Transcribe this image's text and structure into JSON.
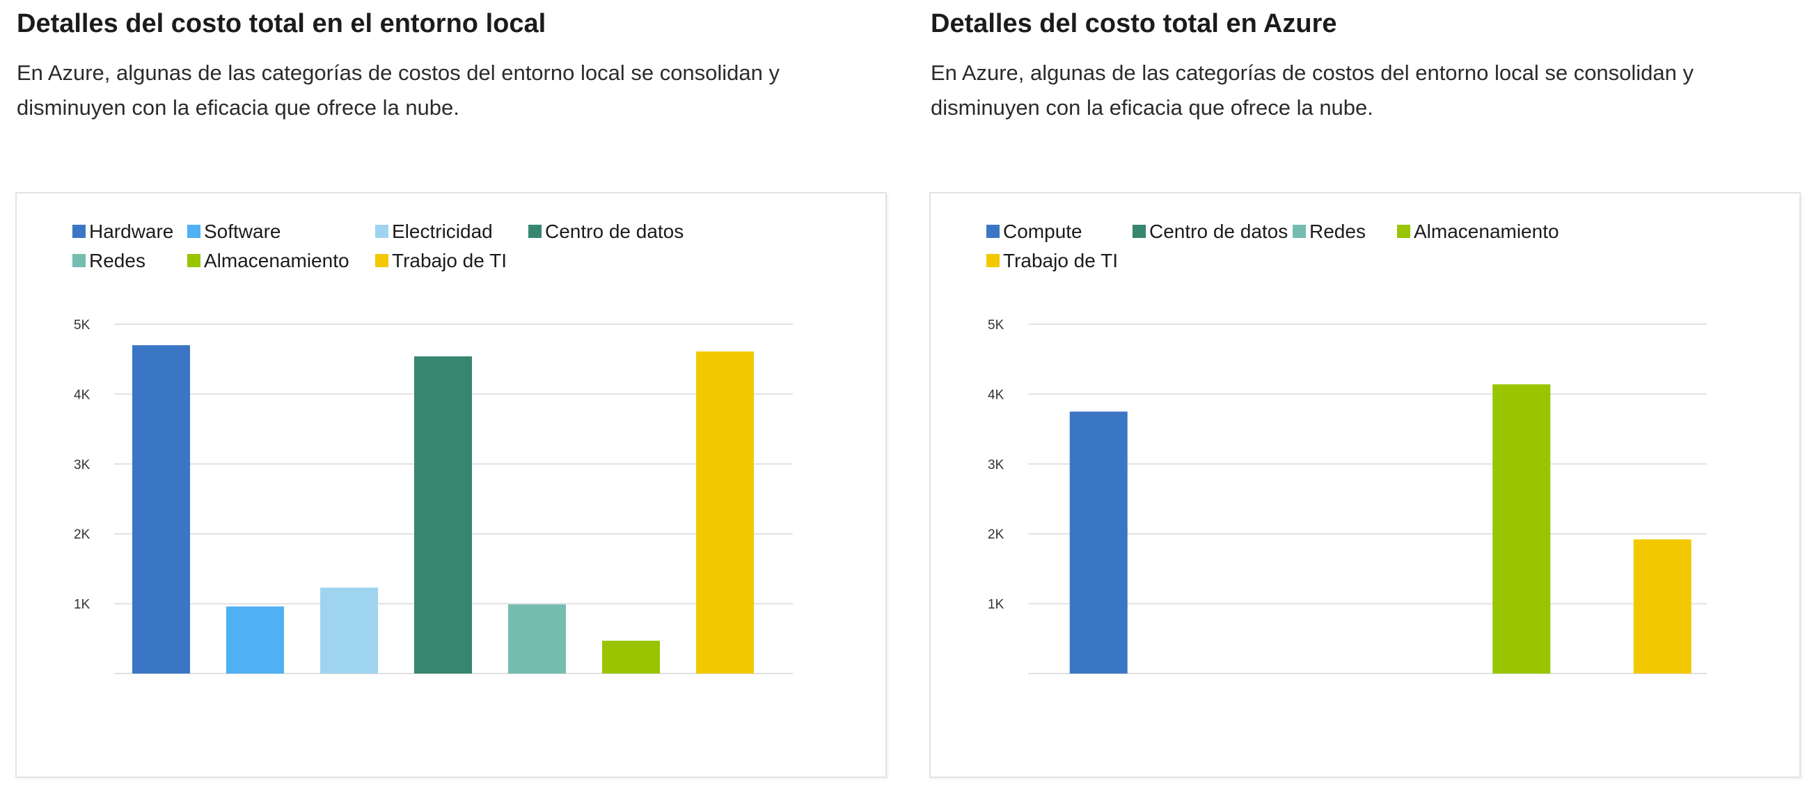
{
  "chart_data": [
    {
      "type": "bar",
      "title": "Detalles del costo total en el entorno local",
      "subtitle": "En Azure, algunas de las categorías de costos del entorno local se consolidan y disminuyen con la eficacia que ofrece la nube.",
      "categories": [
        "Hardware",
        "Software",
        "Electricidad",
        "Centro de datos",
        "Redes",
        "Almacenamiento",
        "Trabajo de TI"
      ],
      "values": [
        4700,
        960,
        1230,
        4540,
        990,
        470,
        4610
      ],
      "colors": [
        "#3b76c4",
        "#4fb0f3",
        "#9ed4f0",
        "#37866f",
        "#74bdb0",
        "#98c500",
        "#f2c900"
      ],
      "yticks": [
        "1K",
        "2K",
        "3K",
        "4K",
        "5K"
      ],
      "ylim": [
        0,
        5000
      ],
      "grid": true,
      "legend": "top-left",
      "xlabel": "",
      "ylabel": ""
    },
    {
      "type": "bar",
      "title": "Detalles del costo total en Azure",
      "subtitle": "En Azure, algunas de las categorías de costos del entorno local se consolidan y disminuyen con la eficacia que ofrece la nube.",
      "categories": [
        "Compute",
        "Centro de datos",
        "Redes",
        "Almacenamiento",
        "Trabajo de TI"
      ],
      "values": [
        3750,
        0,
        0,
        4140,
        1920
      ],
      "colors": [
        "#3b76c4",
        "#37866f",
        "#74bdb0",
        "#98c500",
        "#f2c900"
      ],
      "yticks": [
        "1K",
        "2K",
        "3K",
        "4K",
        "5K"
      ],
      "ylim": [
        0,
        5000
      ],
      "grid": true,
      "legend": "top-left",
      "xlabel": "",
      "ylabel": ""
    }
  ]
}
